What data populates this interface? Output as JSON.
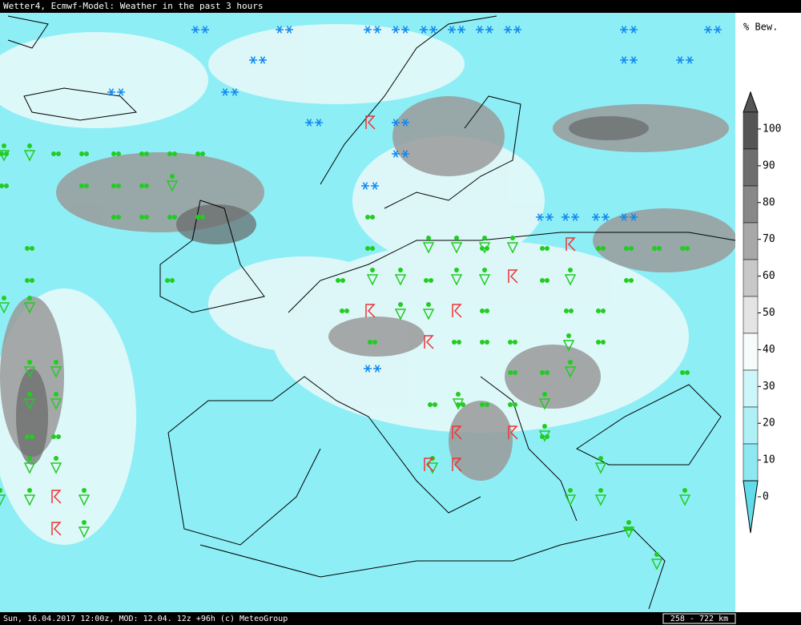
{
  "header": {
    "title": "Wetter4, Ecmwf-Model: Weather in the past 3 hours"
  },
  "legend": {
    "label": "% Bew.",
    "ticks": [
      100,
      90,
      80,
      70,
      60,
      50,
      40,
      30,
      20,
      10,
      0
    ]
  },
  "footer": {
    "text": "Sun, 16.04.2017 12:00z, MOD: 12.04. 12z +96h (c) MeteoGroup",
    "scale": "258 - 722 km"
  }
}
